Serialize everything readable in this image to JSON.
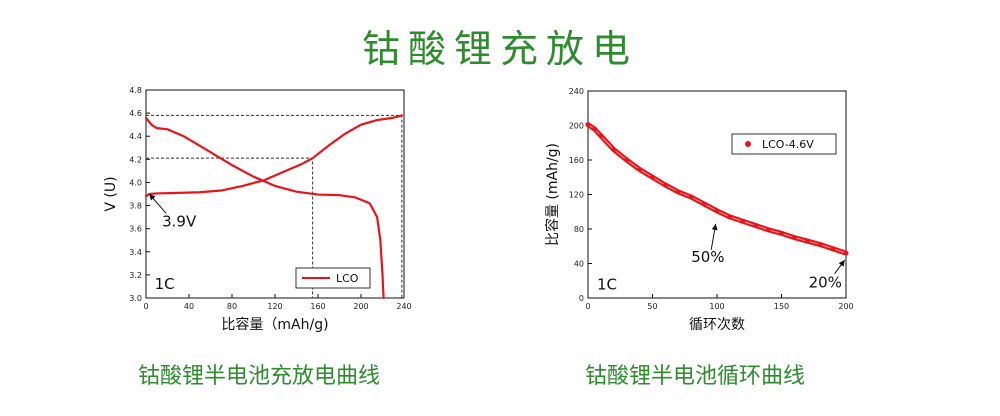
{
  "title": "钴酸锂充放电",
  "chart_data": [
    {
      "type": "line",
      "caption": "钴酸锂半电池充放电曲线",
      "xlabel": "比容量（mAh/g)",
      "ylabel": "V (U)",
      "xlim": [
        0,
        240
      ],
      "ylim": [
        3.0,
        4.8
      ],
      "xticks": [
        "0",
        "40",
        "80",
        "120",
        "160",
        "200",
        "240"
      ],
      "yticks": [
        "3.0",
        "3.2",
        "3.4",
        "3.6",
        "3.8",
        "4.0",
        "4.2",
        "4.4",
        "4.6",
        "4.8"
      ],
      "legend_position": "bottom-right",
      "series": [
        {
          "name": "LCO",
          "color": "#e8141c",
          "points": [
            [
              0,
              3.88
            ],
            [
              3,
              3.9
            ],
            [
              10,
              3.905
            ],
            [
              30,
              3.91
            ],
            [
              50,
              3.915
            ],
            [
              70,
              3.93
            ],
            [
              90,
              3.97
            ],
            [
              110,
              4.02
            ],
            [
              130,
              4.1
            ],
            [
              145,
              4.16
            ],
            [
              155,
              4.21
            ],
            [
              170,
              4.32
            ],
            [
              185,
              4.42
            ],
            [
              200,
              4.5
            ],
            [
              215,
              4.54
            ],
            [
              230,
              4.56
            ],
            [
              238,
              4.58
            ]
          ]
        },
        {
          "name": "",
          "color": "#e8141c",
          "points": [
            [
              0,
              4.56
            ],
            [
              5,
              4.5
            ],
            [
              10,
              4.47
            ],
            [
              20,
              4.46
            ],
            [
              35,
              4.4
            ],
            [
              55,
              4.29
            ],
            [
              80,
              4.15
            ],
            [
              100,
              4.05
            ],
            [
              120,
              3.97
            ],
            [
              140,
              3.92
            ],
            [
              160,
              3.895
            ],
            [
              180,
              3.89
            ],
            [
              195,
              3.87
            ],
            [
              208,
              3.82
            ],
            [
              215,
              3.7
            ],
            [
              218,
              3.5
            ],
            [
              220,
              3.2
            ],
            [
              221,
              3.0
            ]
          ]
        }
      ],
      "guides": [
        [
          [
            0,
            4.58
          ],
          [
            238,
            4.58
          ],
          [
            238,
            3.0
          ]
        ],
        [
          [
            0,
            4.21
          ],
          [
            155,
            4.21
          ],
          [
            155,
            3.0
          ]
        ]
      ],
      "annotations": [
        {
          "text": "3.9V",
          "x": 15,
          "y": 3.62,
          "arrow_to": [
            3,
            3.9
          ]
        },
        {
          "text": "1C",
          "x": 8,
          "y": 3.08
        }
      ]
    },
    {
      "type": "line",
      "caption": "钴酸锂半电池循环曲线",
      "xlabel": "循环次数",
      "ylabel": "比容量 (mAh/g)",
      "xlim": [
        0,
        200
      ],
      "ylim": [
        0,
        240
      ],
      "xticks": [
        "0",
        "50",
        "100",
        "150",
        "200"
      ],
      "yticks": [
        "0",
        "40",
        "80",
        "120",
        "160",
        "200",
        "240"
      ],
      "legend_position": "top-right",
      "series": [
        {
          "name": "LCO-4.6V",
          "color": "#e8141c",
          "x": [
            0,
            5,
            10,
            20,
            30,
            40,
            50,
            60,
            70,
            80,
            90,
            100,
            110,
            120,
            130,
            140,
            150,
            160,
            170,
            180,
            190,
            200
          ],
          "y": [
            201,
            196,
            188,
            172,
            160,
            149,
            140,
            131,
            123,
            117,
            109,
            101,
            94,
            89,
            84,
            79,
            75,
            70,
            66,
            62,
            57,
            52
          ]
        }
      ],
      "annotations": [
        {
          "text": "50%",
          "x": 80,
          "y": 42,
          "arrow_to": [
            99,
            86
          ]
        },
        {
          "text": "20%",
          "x": 171,
          "y": 12,
          "arrow_to": [
            199,
            44
          ]
        },
        {
          "text": "1C",
          "x": 7,
          "y": 10
        }
      ]
    }
  ]
}
